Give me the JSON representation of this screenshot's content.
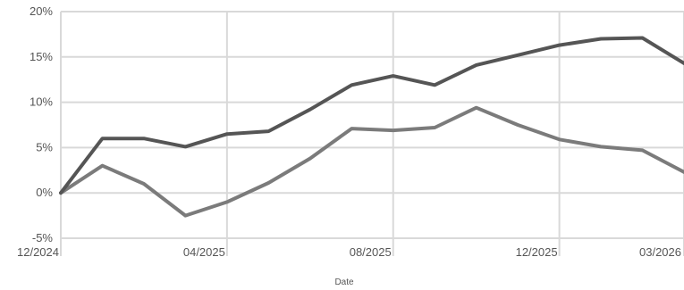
{
  "chart_data": {
    "type": "line",
    "xlabel": "Date",
    "ylabel": "",
    "title": "",
    "y_tick_labels": [
      "-5%",
      "0%",
      "5%",
      "10%",
      "15%",
      "20%"
    ],
    "y_ticks": [
      -5,
      0,
      5,
      10,
      15,
      20
    ],
    "ylim": [
      -5,
      20
    ],
    "x_tick_labels": [
      "12/2024",
      "04/2025",
      "08/2025",
      "12/2025",
      "03/2026"
    ],
    "x_ticks": [
      "2024-12",
      "2025-04",
      "2025-08",
      "2025-12",
      "2026-03"
    ],
    "xlim": [
      "2024-12",
      "2026-03"
    ],
    "grid": true,
    "x": [
      "2024-12",
      "2025-01",
      "2025-02",
      "2025-03",
      "2025-04",
      "2025-05",
      "2025-06",
      "2025-07",
      "2025-08",
      "2025-09",
      "2025-10",
      "2025-11",
      "2025-12",
      "2026-01",
      "2026-02",
      "2026-03"
    ],
    "series": [
      {
        "color": "#555555",
        "values": [
          0.0,
          6.0,
          6.0,
          5.1,
          6.5,
          6.8,
          9.2,
          11.9,
          12.9,
          11.9,
          14.1,
          15.2,
          16.3,
          17.0,
          17.1,
          14.3
        ]
      },
      {
        "color": "#7b7b7b",
        "values": [
          0.0,
          3.0,
          1.0,
          -2.5,
          -1.0,
          1.1,
          3.8,
          7.1,
          6.9,
          7.2,
          9.4,
          7.5,
          5.9,
          5.1,
          4.7,
          2.3
        ]
      }
    ]
  }
}
